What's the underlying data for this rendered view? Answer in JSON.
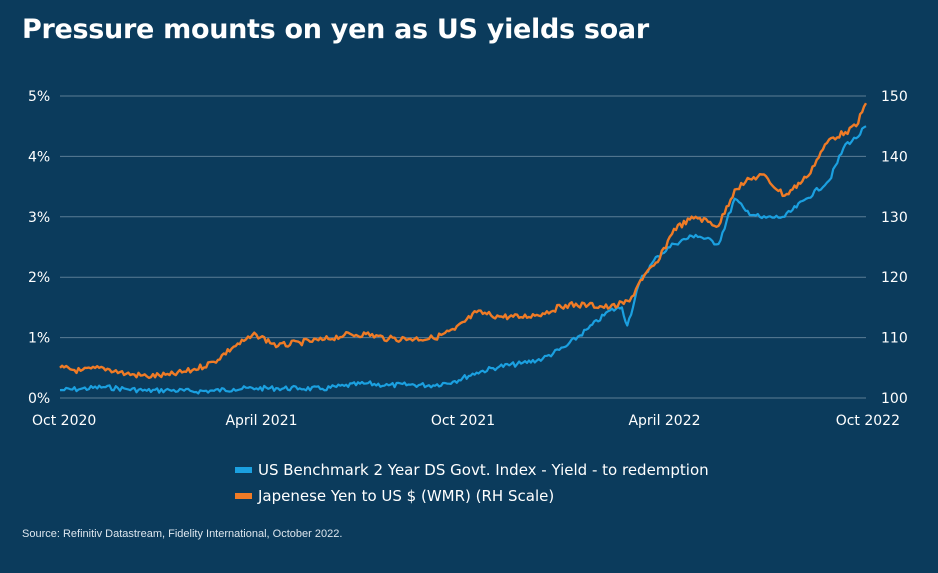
{
  "title": "Pressure mounts on yen as US yields soar",
  "source": "Source: Refinitiv Datastream, Fidelity International, October 2022.",
  "colors": {
    "background": "#0b3b5c",
    "us_yield": "#1ba0e0",
    "jpy": "#ef7b26",
    "grid": "#5b7d95",
    "text": "#ffffff"
  },
  "chart_data": {
    "type": "line",
    "title": "Pressure mounts on yen as US yields soar",
    "x_ticks": [
      "Oct 2020",
      "April 2021",
      "Oct 2021",
      "April 2022",
      "Oct 2022"
    ],
    "x_range": [
      "2020-10-01",
      "2022-10-14"
    ],
    "y_left": {
      "range": [
        0,
        5
      ],
      "ticks": [
        "0%",
        "1%",
        "2%",
        "3%",
        "4%",
        "5%"
      ]
    },
    "y_right": {
      "range": [
        100,
        150
      ],
      "ticks": [
        "100",
        "110",
        "120",
        "130",
        "140",
        "150"
      ]
    },
    "grid": "horizontal",
    "legend_position": "bottom",
    "series": [
      {
        "name": "US Benchmark 2 Year DS Govt. Index - Yield - to redemption",
        "axis": "left",
        "color": "#1ba0e0",
        "points": [
          [
            "2020-10-01",
            0.13
          ],
          [
            "2020-10-20",
            0.15
          ],
          [
            "2020-11-10",
            0.18
          ],
          [
            "2020-12-01",
            0.15
          ],
          [
            "2020-12-20",
            0.12
          ],
          [
            "2021-01-10",
            0.13
          ],
          [
            "2021-01-31",
            0.11
          ],
          [
            "2021-02-20",
            0.12
          ],
          [
            "2021-03-10",
            0.15
          ],
          [
            "2021-03-31",
            0.16
          ],
          [
            "2021-04-20",
            0.16
          ],
          [
            "2021-05-10",
            0.16
          ],
          [
            "2021-05-31",
            0.15
          ],
          [
            "2021-06-20",
            0.2
          ],
          [
            "2021-07-10",
            0.24
          ],
          [
            "2021-07-31",
            0.21
          ],
          [
            "2021-08-20",
            0.22
          ],
          [
            "2021-09-10",
            0.21
          ],
          [
            "2021-09-30",
            0.28
          ],
          [
            "2021-10-20",
            0.42
          ],
          [
            "2021-11-10",
            0.52
          ],
          [
            "2021-11-30",
            0.57
          ],
          [
            "2021-12-20",
            0.65
          ],
          [
            "2022-01-10",
            0.85
          ],
          [
            "2022-01-31",
            1.15
          ],
          [
            "2022-02-20",
            1.45
          ],
          [
            "2022-03-03",
            1.5
          ],
          [
            "2022-03-08",
            1.2
          ],
          [
            "2022-03-20",
            1.95
          ],
          [
            "2022-04-05",
            2.35
          ],
          [
            "2022-04-20",
            2.55
          ],
          [
            "2022-05-10",
            2.7
          ],
          [
            "2022-05-31",
            2.55
          ],
          [
            "2022-06-15",
            3.3
          ],
          [
            "2022-06-25",
            3.1
          ],
          [
            "2022-07-10",
            2.98
          ],
          [
            "2022-07-31",
            3.0
          ],
          [
            "2022-08-20",
            3.3
          ],
          [
            "2022-09-10",
            3.6
          ],
          [
            "2022-09-25",
            4.2
          ],
          [
            "2022-10-05",
            4.3
          ],
          [
            "2022-10-14",
            4.5
          ]
        ]
      },
      {
        "name": "Japenese Yen to US $ (WMR) (RH Scale)",
        "axis": "right",
        "color": "#ef7b26",
        "points": [
          [
            "2020-10-01",
            105.0
          ],
          [
            "2020-10-20",
            104.5
          ],
          [
            "2020-11-10",
            105.0
          ],
          [
            "2020-12-01",
            104.0
          ],
          [
            "2020-12-20",
            103.6
          ],
          [
            "2021-01-10",
            103.8
          ],
          [
            "2021-01-31",
            104.6
          ],
          [
            "2021-02-20",
            106.0
          ],
          [
            "2021-03-10",
            108.5
          ],
          [
            "2021-03-31",
            110.5
          ],
          [
            "2021-04-20",
            108.6
          ],
          [
            "2021-05-10",
            109.2
          ],
          [
            "2021-05-31",
            109.6
          ],
          [
            "2021-06-20",
            110.4
          ],
          [
            "2021-07-10",
            110.6
          ],
          [
            "2021-07-31",
            109.8
          ],
          [
            "2021-08-20",
            109.8
          ],
          [
            "2021-09-10",
            109.9
          ],
          [
            "2021-09-30",
            111.3
          ],
          [
            "2021-10-20",
            114.2
          ],
          [
            "2021-11-10",
            113.5
          ],
          [
            "2021-11-30",
            113.4
          ],
          [
            "2021-12-20",
            114.0
          ],
          [
            "2022-01-10",
            115.4
          ],
          [
            "2022-01-31",
            115.4
          ],
          [
            "2022-02-20",
            115.0
          ],
          [
            "2022-03-10",
            116.0
          ],
          [
            "2022-03-20",
            119.5
          ],
          [
            "2022-04-05",
            122.5
          ],
          [
            "2022-04-20",
            128.0
          ],
          [
            "2022-05-10",
            130.0
          ],
          [
            "2022-05-31",
            128.5
          ],
          [
            "2022-06-15",
            134.5
          ],
          [
            "2022-06-25",
            135.8
          ],
          [
            "2022-07-10",
            137.0
          ],
          [
            "2022-07-31",
            133.5
          ],
          [
            "2022-08-20",
            136.5
          ],
          [
            "2022-09-10",
            142.8
          ],
          [
            "2022-09-25",
            144.0
          ],
          [
            "2022-10-05",
            145.0
          ],
          [
            "2022-10-14",
            148.8
          ]
        ]
      }
    ]
  }
}
